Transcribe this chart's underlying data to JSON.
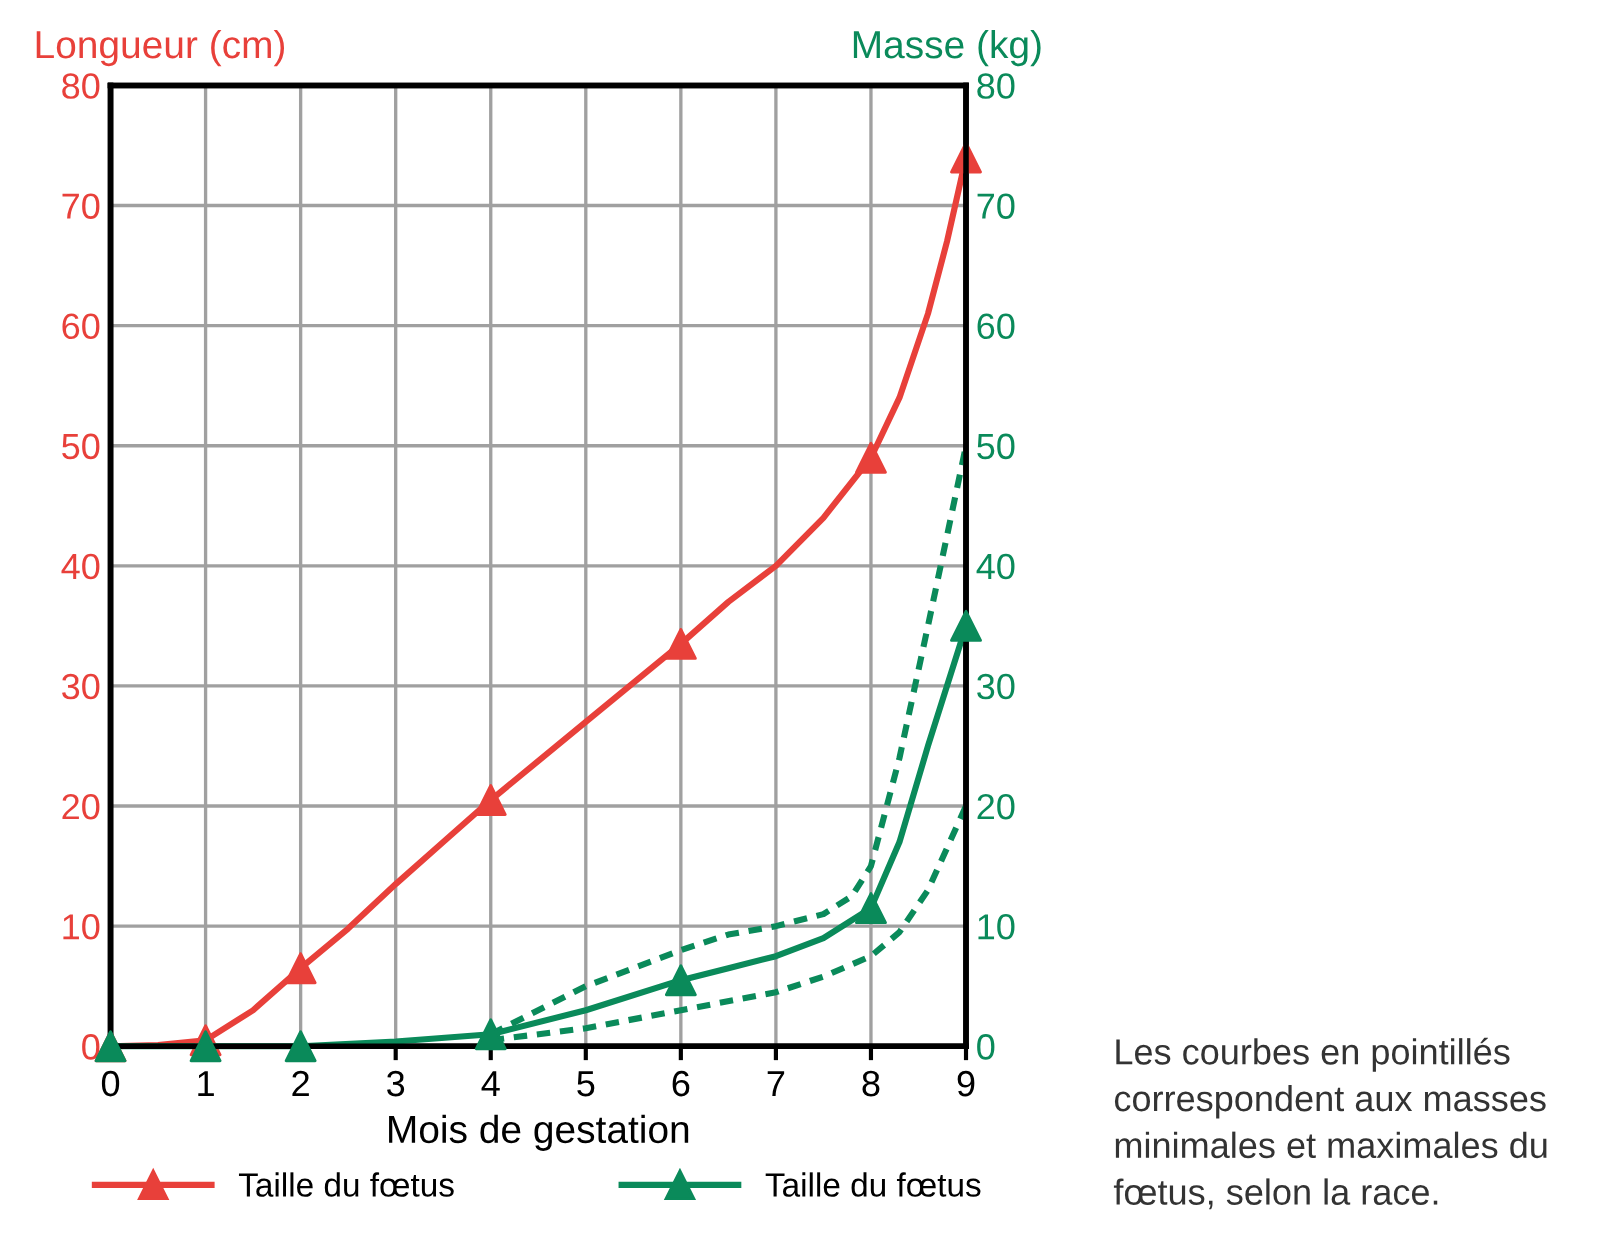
{
  "chart_data": {
    "type": "line",
    "xlabel": "Mois de gestation",
    "ylabel": "Longueur (cm)",
    "y2label": "Masse (kg)",
    "xlim": [
      0,
      9
    ],
    "xticks": [
      0,
      1,
      2,
      3,
      4,
      5,
      6,
      7,
      8,
      9
    ],
    "ylim": [
      0,
      80
    ],
    "yticks": [
      0,
      10,
      20,
      30,
      40,
      50,
      60,
      70,
      80
    ],
    "y2lim": [
      0,
      80
    ],
    "y2ticks": [
      0,
      10,
      20,
      30,
      40,
      50,
      60,
      70,
      80
    ],
    "grid": true,
    "legend": "bottom",
    "series": [
      {
        "name": "Taille du fœtus",
        "color": "#e8403a",
        "marker": "none",
        "line_style": "solid",
        "x": [
          0,
          0.5,
          1,
          1.5,
          2,
          2.5,
          3,
          3.5,
          4,
          5,
          6,
          6.5,
          7,
          7.5,
          8,
          8.3,
          8.6,
          8.8,
          9
        ],
        "values": [
          0,
          0.1,
          0.5,
          3,
          6.5,
          9.8,
          13.5,
          17,
          20.5,
          27,
          33.5,
          37,
          40,
          44,
          49,
          54,
          61,
          67,
          74
        ]
      },
      {
        "type": "scatter",
        "color": "#e8403a",
        "marker": "triangle",
        "x": [
          0,
          1,
          2,
          4,
          6,
          8,
          9
        ],
        "values": [
          0,
          0.5,
          6.5,
          20.5,
          33.5,
          49,
          74
        ]
      },
      {
        "name": "Taille du fœtus",
        "color": "#0a8a5a",
        "marker": "none",
        "line_style": "solid",
        "axis": "y2",
        "x": [
          0,
          1,
          2,
          3,
          4,
          5,
          6,
          6.5,
          7,
          7.5,
          8,
          8.3,
          8.6,
          9
        ],
        "values": [
          0,
          0,
          0,
          0.4,
          1,
          3,
          5.5,
          6.5,
          7.5,
          9,
          11.5,
          17,
          25,
          35
        ]
      },
      {
        "type": "scatter",
        "color": "#0a8a5a",
        "marker": "triangle",
        "axis": "y2",
        "x": [
          0,
          1,
          2,
          4,
          6,
          8,
          9
        ],
        "values": [
          0,
          0,
          0,
          1,
          5.5,
          11.5,
          35
        ]
      },
      {
        "color": "#0a8a5a",
        "marker": "none",
        "line_style": "dotted",
        "axis": "y2",
        "x": [
          4,
          5,
          6,
          6.5,
          7,
          7.5,
          7.8,
          8,
          8.3,
          8.6,
          9
        ],
        "values": [
          1,
          5,
          8,
          9.3,
          10,
          11,
          12.5,
          15,
          24,
          35,
          50
        ]
      },
      {
        "color": "#0a8a5a",
        "marker": "none",
        "line_style": "dotted",
        "axis": "y2",
        "x": [
          4,
          5,
          6,
          7,
          7.5,
          8,
          8.3,
          8.6,
          9
        ],
        "values": [
          0.5,
          1.5,
          3,
          4.5,
          5.8,
          7.5,
          9.5,
          13,
          20
        ]
      }
    ],
    "annotations": [
      "Les courbes en pointillés correspondent aux masses minimales et maximales du fœtus, selon la race."
    ]
  }
}
